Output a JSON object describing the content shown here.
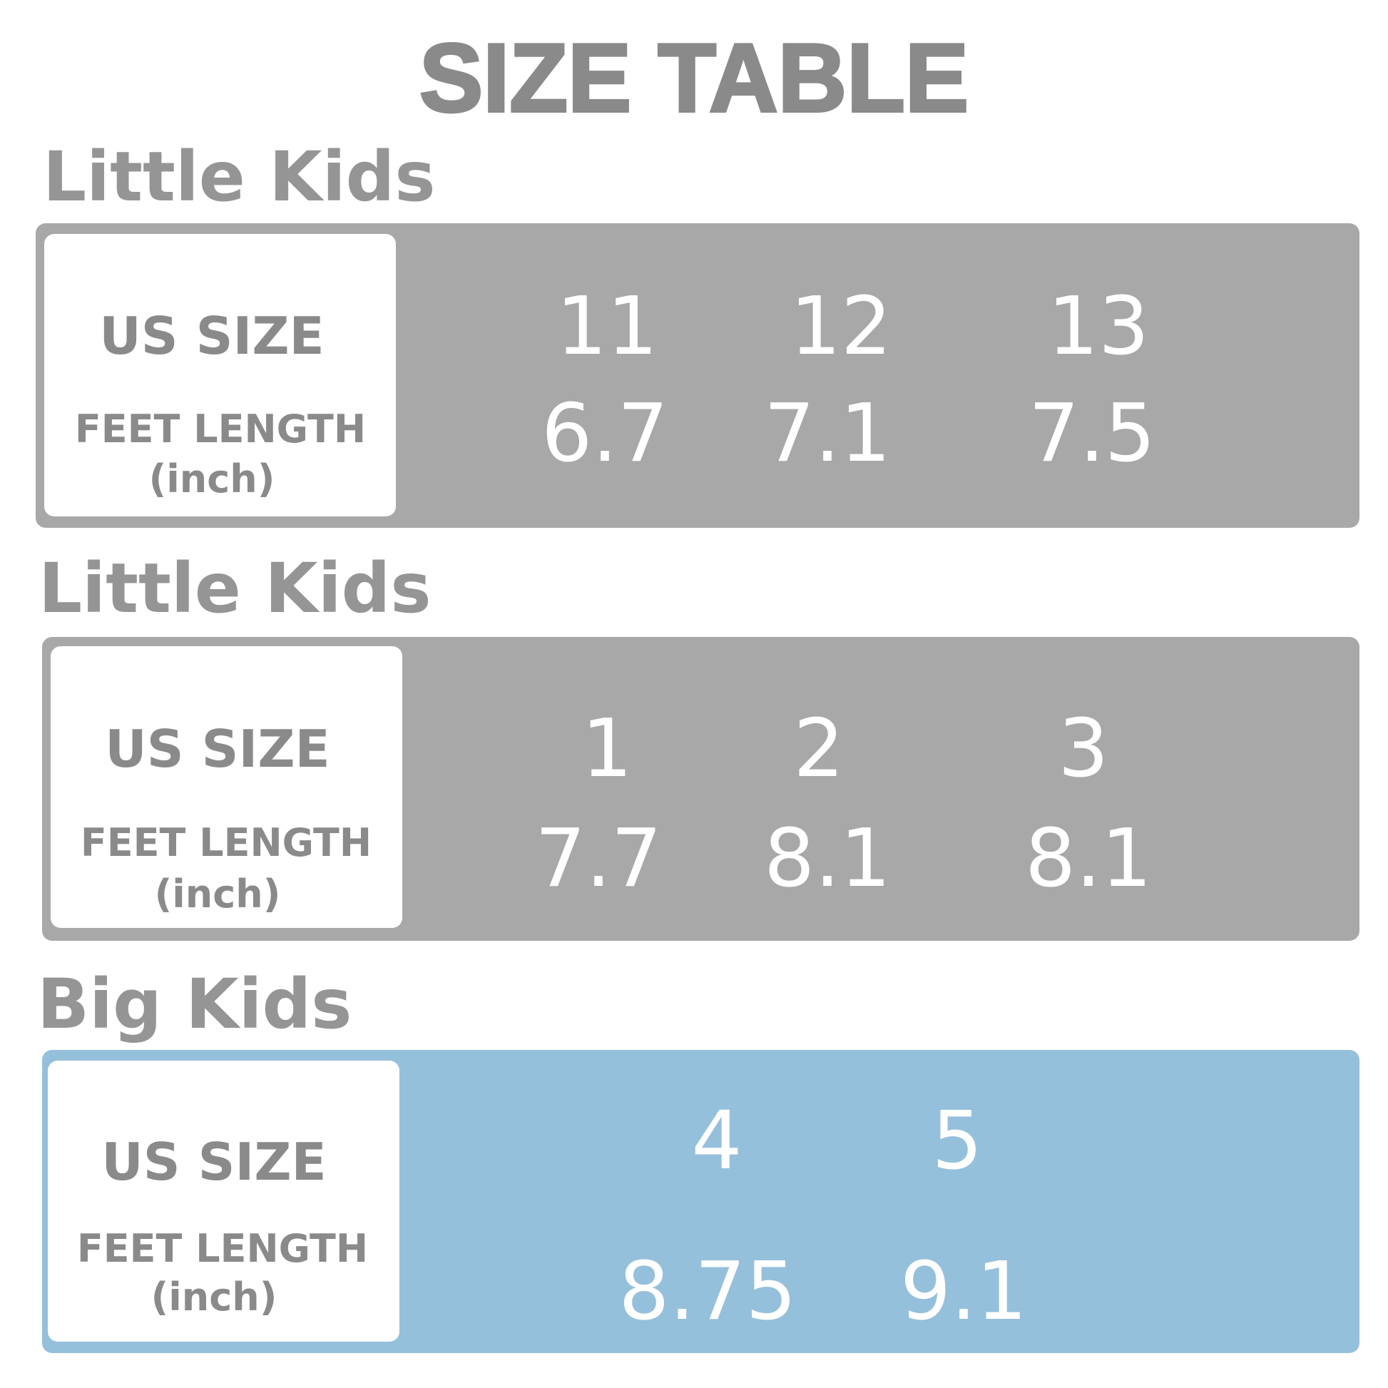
{
  "title": "SIZE TABLE",
  "sections": [
    {
      "heading": "Little Kids",
      "us_size_label": "US SIZE",
      "feet_length_label": "FEET LENGTH",
      "unit_label": "(inch)",
      "sizes": [
        "11",
        "12",
        "13"
      ],
      "lengths": [
        "6.7",
        "7.1",
        "7.5"
      ]
    },
    {
      "heading": "Little Kids",
      "us_size_label": "US SIZE",
      "feet_length_label": "FEET LENGTH",
      "unit_label": "(inch)",
      "sizes": [
        "1",
        "2",
        "3"
      ],
      "lengths": [
        "7.7",
        "8.1",
        "8.1"
      ]
    },
    {
      "heading": "Big Kids",
      "us_size_label": "US SIZE",
      "feet_length_label": "FEET LENGTH",
      "unit_label": "(inch)",
      "sizes": [
        "4",
        "5"
      ],
      "lengths": [
        "8.75",
        "9.1"
      ]
    }
  ]
}
